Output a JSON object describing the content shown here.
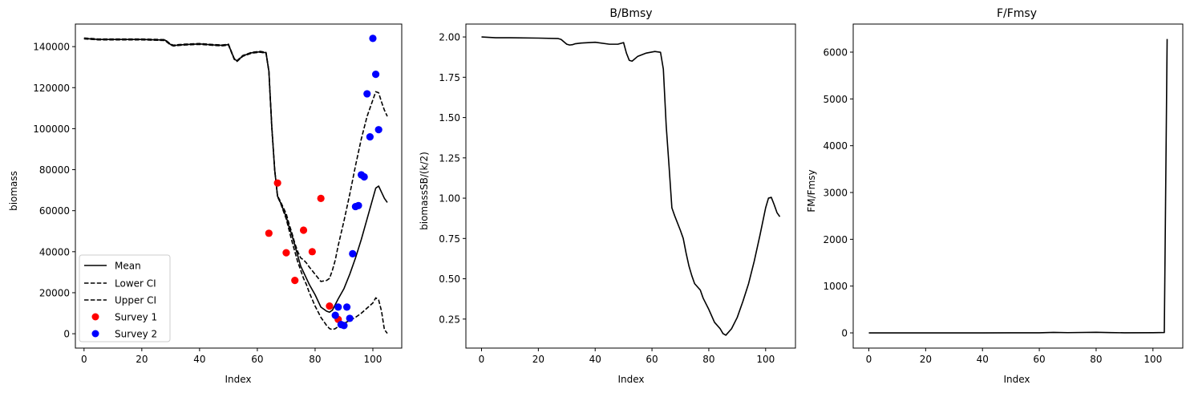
{
  "colors": {
    "line": "#000000",
    "survey1": "#ff0000",
    "survey2": "#0000ff",
    "legend_border": "#cccccc"
  },
  "chart_data": [
    {
      "type": "line",
      "title": "",
      "xlabel": "Index",
      "ylabel": "biomass",
      "xlim": [
        -3,
        110
      ],
      "ylim": [
        -7000,
        151000
      ],
      "xticks": [
        0,
        20,
        40,
        60,
        80,
        100
      ],
      "yticks": [
        0,
        20000,
        40000,
        60000,
        80000,
        100000,
        120000,
        140000
      ],
      "legend": {
        "position": "lower-left",
        "entries": [
          "Mean",
          "Lower CI",
          "Upper CI",
          "Survey 1",
          "Survey 2"
        ]
      },
      "series": [
        {
          "name": "Mean",
          "style": "solid",
          "x": [
            0,
            5,
            10,
            20,
            28,
            30,
            31,
            33,
            35,
            40,
            45,
            48,
            50,
            52,
            53,
            55,
            58,
            61,
            63,
            64,
            65,
            66,
            67,
            68,
            70,
            71,
            72,
            73,
            74,
            75,
            76,
            77,
            78,
            80,
            82,
            84,
            85,
            86,
            88,
            90,
            92,
            94,
            96,
            98,
            100,
            101,
            102,
            103,
            104,
            105
          ],
          "y": [
            144000,
            143500,
            143500,
            143500,
            143200,
            141000,
            140500,
            140800,
            141000,
            141300,
            140800,
            140600,
            141000,
            134000,
            133000,
            135500,
            137000,
            137500,
            137000,
            128000,
            101000,
            80000,
            67000,
            64000,
            57000,
            52000,
            48000,
            43000,
            38000,
            33000,
            30000,
            27000,
            24000,
            19000,
            13000,
            11000,
            10500,
            11500,
            17000,
            22000,
            29000,
            37000,
            46000,
            56000,
            66000,
            71000,
            72000,
            69000,
            66000,
            64000
          ]
        },
        {
          "name": "Lower CI",
          "style": "dashed",
          "x": [
            0,
            5,
            10,
            20,
            28,
            30,
            31,
            33,
            35,
            40,
            45,
            48,
            50,
            52,
            53,
            55,
            58,
            61,
            63,
            64,
            65,
            66,
            67,
            68,
            70,
            71,
            72,
            73,
            74,
            75,
            76,
            77,
            78,
            80,
            82,
            84,
            85,
            86,
            87,
            88,
            90,
            92,
            94,
            96,
            98,
            100,
            101,
            102,
            103,
            104,
            105
          ],
          "y": [
            143800,
            143300,
            143300,
            143300,
            143000,
            140800,
            140300,
            140600,
            140800,
            141100,
            140600,
            140400,
            140800,
            133800,
            132800,
            135300,
            136800,
            137300,
            136800,
            127800,
            100800,
            79800,
            66800,
            63800,
            56000,
            50500,
            45000,
            40000,
            35000,
            31000,
            27000,
            24000,
            20000,
            13500,
            8000,
            4000,
            2500,
            2000,
            2500,
            3500,
            5000,
            6500,
            8000,
            10000,
            12500,
            15000,
            17500,
            16500,
            11000,
            2000,
            200
          ]
        },
        {
          "name": "Upper CI",
          "style": "dashed",
          "x": [
            0,
            5,
            10,
            20,
            28,
            30,
            31,
            33,
            35,
            40,
            45,
            48,
            50,
            52,
            53,
            55,
            58,
            61,
            63,
            64,
            65,
            66,
            67,
            68,
            70,
            71,
            72,
            73,
            74,
            75,
            76,
            77,
            78,
            80,
            82,
            84,
            85,
            86,
            87,
            88,
            90,
            92,
            94,
            96,
            98,
            100,
            101,
            102,
            103,
            104,
            105
          ],
          "y": [
            144200,
            143700,
            143700,
            143700,
            143400,
            141200,
            140700,
            141000,
            141200,
            141500,
            141000,
            140800,
            141200,
            134200,
            133200,
            135700,
            137200,
            137700,
            137200,
            128200,
            101200,
            80200,
            67200,
            64500,
            58500,
            53500,
            49000,
            44000,
            40000,
            37000,
            36000,
            34500,
            32500,
            29000,
            25500,
            26000,
            27000,
            31000,
            36000,
            43000,
            55000,
            68000,
            82000,
            95000,
            106000,
            114000,
            118000,
            117500,
            113000,
            109000,
            106000
          ]
        }
      ],
      "scatter": [
        {
          "name": "Survey 1",
          "color": "#ff0000",
          "points": [
            [
              64,
              49000
            ],
            [
              67,
              73500
            ],
            [
              70,
              39500
            ],
            [
              73,
              26000
            ],
            [
              76,
              50500
            ],
            [
              79,
              40000
            ],
            [
              82,
              66000
            ],
            [
              85,
              13500
            ],
            [
              88,
              7000
            ]
          ]
        },
        {
          "name": "Survey 2",
          "color": "#0000ff",
          "points": [
            [
              87,
              9000
            ],
            [
              88,
              13000
            ],
            [
              89,
              4500
            ],
            [
              90,
              4000
            ],
            [
              91,
              13000
            ],
            [
              92,
              7500
            ],
            [
              93,
              39000
            ],
            [
              94,
              62000
            ],
            [
              95,
              62500
            ],
            [
              96,
              77500
            ],
            [
              97,
              76500
            ],
            [
              98,
              117000
            ],
            [
              99,
              96000
            ],
            [
              100,
              144000
            ],
            [
              101,
              126500
            ],
            [
              102,
              99500
            ]
          ]
        }
      ]
    },
    {
      "type": "line",
      "title": "B/Bmsy",
      "xlabel": "Index",
      "ylabel": "biomassSB/(k/2)",
      "xlim": [
        -5.5,
        110.5
      ],
      "ylim": [
        0.07,
        2.08
      ],
      "xticks": [
        0,
        20,
        40,
        60,
        80,
        100
      ],
      "yticks": [
        0.25,
        0.5,
        0.75,
        1.0,
        1.25,
        1.5,
        1.75,
        2.0
      ],
      "yticklabels": [
        "0.25",
        "0.50",
        "0.75",
        "1.00",
        "1.25",
        "1.50",
        "1.75",
        "2.00"
      ],
      "series": [
        {
          "name": "",
          "style": "solid",
          "x": [
            0,
            5,
            10,
            20,
            27,
            28,
            29,
            30,
            31,
            32,
            33,
            35,
            40,
            45,
            48,
            50,
            51,
            52,
            53,
            55,
            58,
            61,
            63,
            64,
            65,
            66,
            67,
            68,
            70,
            71,
            72,
            73,
            74,
            75,
            76,
            77,
            78,
            80,
            82,
            84,
            85,
            86,
            88,
            90,
            92,
            94,
            96,
            98,
            100,
            101,
            102,
            103,
            104,
            105
          ],
          "y": [
            2.0,
            1.995,
            1.995,
            1.993,
            1.99,
            1.985,
            1.97,
            1.955,
            1.95,
            1.952,
            1.958,
            1.962,
            1.967,
            1.955,
            1.955,
            1.965,
            1.9,
            1.855,
            1.85,
            1.88,
            1.9,
            1.91,
            1.905,
            1.8,
            1.45,
            1.2,
            0.94,
            0.89,
            0.8,
            0.75,
            0.66,
            0.58,
            0.52,
            0.47,
            0.45,
            0.43,
            0.38,
            0.31,
            0.23,
            0.19,
            0.16,
            0.15,
            0.19,
            0.26,
            0.36,
            0.47,
            0.61,
            0.77,
            0.94,
            1.0,
            1.005,
            0.96,
            0.91,
            0.885
          ]
        }
      ]
    },
    {
      "type": "line",
      "title": "F/Fmsy",
      "xlabel": "Index",
      "ylabel": "FM/Fmsy",
      "xlim": [
        -5.5,
        110.5
      ],
      "ylim": [
        -325,
        6600
      ],
      "xticks": [
        0,
        20,
        40,
        60,
        80,
        100
      ],
      "yticks": [
        0,
        1000,
        2000,
        3000,
        4000,
        5000,
        6000
      ],
      "series": [
        {
          "name": "",
          "style": "solid",
          "x": [
            0,
            10,
            20,
            30,
            40,
            50,
            60,
            65,
            70,
            80,
            85,
            90,
            100,
            104,
            105
          ],
          "y": [
            0,
            0,
            0,
            0,
            0,
            1,
            2,
            10,
            5,
            12,
            6,
            2,
            3,
            8,
            6280
          ]
        }
      ]
    }
  ]
}
